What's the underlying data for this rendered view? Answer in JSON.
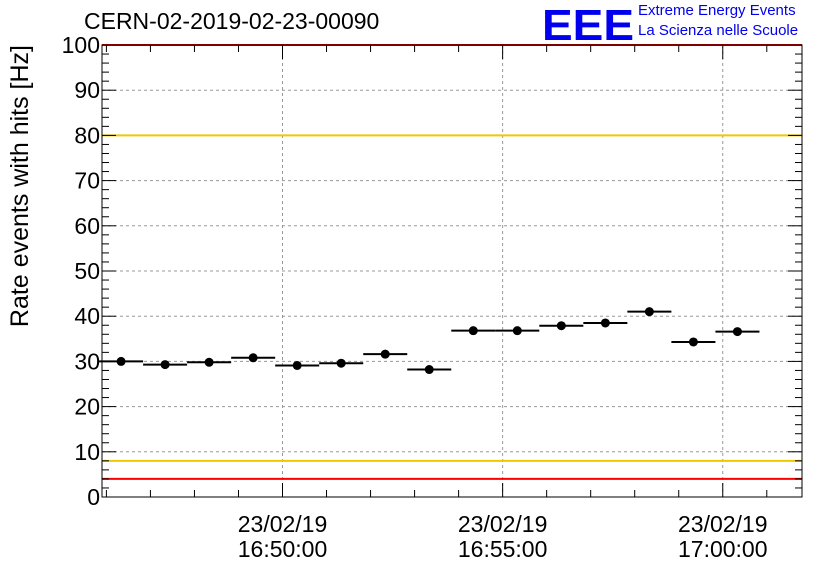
{
  "header": {
    "run_title": "CERN-02-2019-02-23-00090",
    "logo_text": "EEE",
    "logo_line1": "Extreme Energy Events",
    "logo_line2": "La Scienza nelle Scuole",
    "logo_color": "#0000ee"
  },
  "chart_data": {
    "type": "scatter",
    "title": "CERN-02-2019-02-23-00090",
    "xlabel": "",
    "ylabel": "Rate events with hits [Hz]",
    "x_unit": "time (23/02/19)",
    "xlim": [
      "16:45:54",
      "17:01:48"
    ],
    "ylim": [
      0,
      100
    ],
    "grid": true,
    "yticks": [
      0,
      10,
      20,
      30,
      40,
      50,
      60,
      70,
      80,
      90,
      100
    ],
    "xticks": [
      {
        "t": "16:50:00",
        "date": "23/02/19",
        "time": "16:50:00"
      },
      {
        "t": "16:55:00",
        "date": "23/02/19",
        "time": "16:55:00"
      },
      {
        "t": "17:00:00",
        "date": "23/02/19",
        "time": "17:00:00"
      }
    ],
    "series": [
      {
        "x": [
          "16:46:20",
          "16:47:20",
          "16:48:20",
          "16:49:20",
          "16:50:20",
          "16:51:20",
          "16:52:20",
          "16:53:20",
          "16:54:20",
          "16:55:20",
          "16:56:20",
          "16:57:20",
          "16:58:20",
          "16:59:20",
          "17:00:20"
        ],
        "x_error_seconds": 30,
        "values": [
          30.0,
          29.3,
          29.8,
          30.8,
          29.1,
          29.6,
          31.6,
          28.2,
          36.8,
          36.8,
          37.9,
          38.5,
          41.0,
          34.3,
          36.6
        ],
        "color": "#000000"
      }
    ],
    "reference_lines": [
      {
        "y": 100,
        "color": "#ff0000"
      },
      {
        "y": 80,
        "color": "#f0c800"
      },
      {
        "y": 8,
        "color": "#f0c800"
      },
      {
        "y": 4,
        "color": "#ff0000"
      }
    ]
  }
}
